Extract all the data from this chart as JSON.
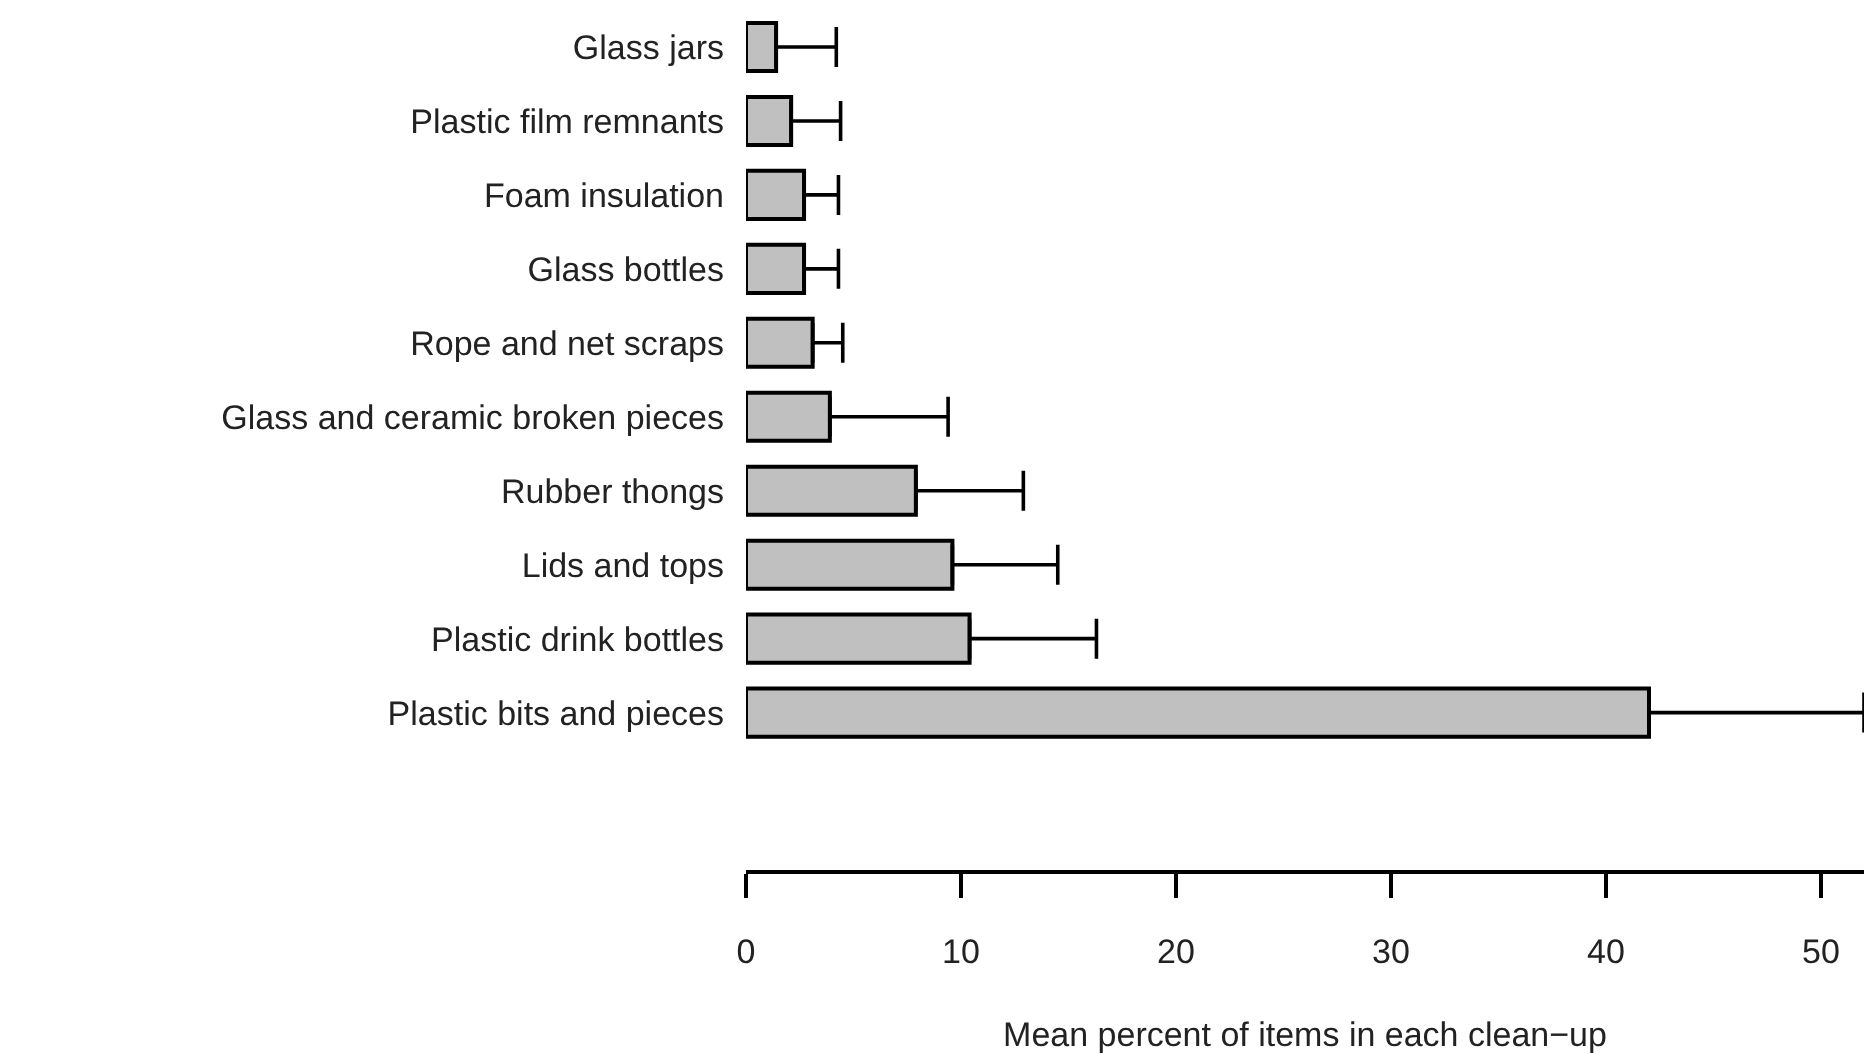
{
  "chart_data": {
    "type": "bar",
    "orientation": "horizontal",
    "xlabel": "Mean percent of items in each clean−up",
    "categories": [
      "Glass jars",
      "Plastic film remnants",
      "Foam insulation",
      "Glass bottles",
      "Rope and net scraps",
      "Glass and ceramic broken pieces",
      "Rubber thongs",
      "Lids and tops",
      "Plastic drink bottles",
      "Plastic bits and pieces"
    ],
    "values": [
      1.4,
      2.1,
      2.7,
      2.7,
      3.1,
      3.9,
      7.9,
      9.6,
      10.4,
      42.0
    ],
    "errors": [
      [
        1.4,
        4.2
      ],
      [
        2.1,
        4.4
      ],
      [
        2.7,
        4.3
      ],
      [
        2.7,
        4.3
      ],
      [
        3.1,
        4.5
      ],
      [
        3.9,
        9.4
      ],
      [
        7.9,
        12.9
      ],
      [
        9.6,
        14.5
      ],
      [
        10.4,
        16.3
      ],
      [
        42.0,
        52
      ]
    ],
    "color": "#c0c0c0",
    "xlim": [
      0,
      52
    ],
    "xticks": [
      0,
      10,
      20,
      30,
      40,
      50
    ]
  }
}
